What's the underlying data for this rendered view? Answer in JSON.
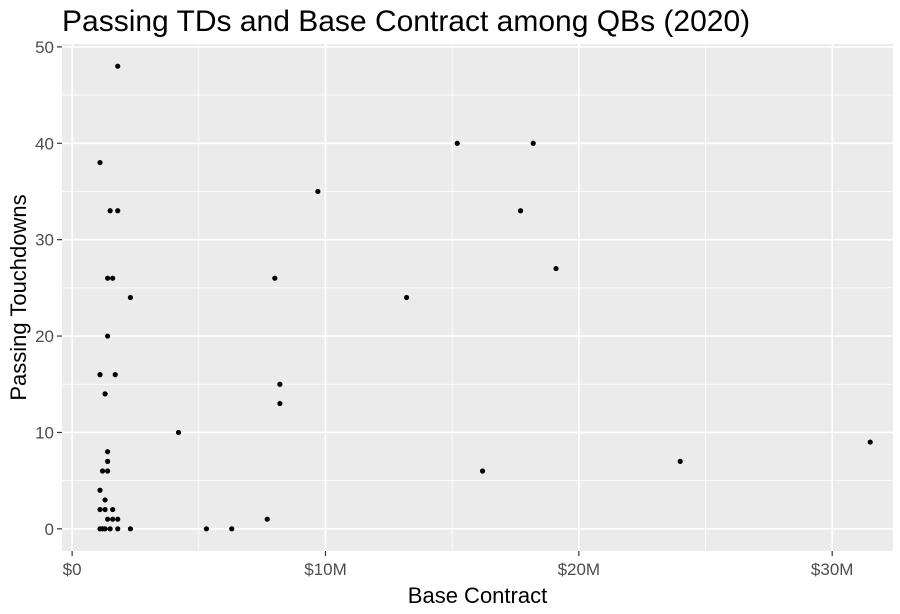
{
  "chart_data": {
    "type": "scatter",
    "title": "Passing TDs and Base Contract among QBs (2020)",
    "xlabel": "Base Contract",
    "ylabel": "Passing Touchdowns",
    "xlim": [
      -0.4,
      32.4
    ],
    "ylim": [
      -2.3,
      50.3
    ],
    "x_unit": "millions of dollars",
    "x_ticks": [
      0,
      10,
      20,
      30
    ],
    "x_tick_labels": [
      "$0",
      "$10M",
      "$20M",
      "$30M"
    ],
    "x_minor_ticks": [
      5,
      15,
      25
    ],
    "y_ticks": [
      0,
      10,
      20,
      30,
      40,
      50
    ],
    "y_tick_labels": [
      "0",
      "10",
      "20",
      "30",
      "40",
      "50"
    ],
    "y_minor_ticks": [
      5,
      15,
      25,
      35,
      45
    ],
    "grid": true,
    "colors": {
      "panel_background": "#ebebeb",
      "grid_line": "#ffffff",
      "point": "#000000",
      "tick_label": "#4d4d4d"
    },
    "points": [
      {
        "x": 1.8,
        "y": 48
      },
      {
        "x": 1.1,
        "y": 38
      },
      {
        "x": 1.5,
        "y": 33
      },
      {
        "x": 1.8,
        "y": 33
      },
      {
        "x": 1.4,
        "y": 26
      },
      {
        "x": 1.6,
        "y": 26
      },
      {
        "x": 2.3,
        "y": 24
      },
      {
        "x": 1.4,
        "y": 20
      },
      {
        "x": 1.1,
        "y": 16
      },
      {
        "x": 1.7,
        "y": 16
      },
      {
        "x": 1.3,
        "y": 14
      },
      {
        "x": 1.4,
        "y": 8
      },
      {
        "x": 1.4,
        "y": 7
      },
      {
        "x": 1.2,
        "y": 6
      },
      {
        "x": 1.4,
        "y": 6
      },
      {
        "x": 1.1,
        "y": 4
      },
      {
        "x": 1.3,
        "y": 3
      },
      {
        "x": 1.1,
        "y": 2
      },
      {
        "x": 1.3,
        "y": 2
      },
      {
        "x": 1.6,
        "y": 2
      },
      {
        "x": 1.4,
        "y": 1
      },
      {
        "x": 1.6,
        "y": 1
      },
      {
        "x": 1.8,
        "y": 1
      },
      {
        "x": 1.1,
        "y": 0
      },
      {
        "x": 1.2,
        "y": 0
      },
      {
        "x": 1.3,
        "y": 0
      },
      {
        "x": 1.5,
        "y": 0
      },
      {
        "x": 1.8,
        "y": 0
      },
      {
        "x": 2.3,
        "y": 0
      },
      {
        "x": 4.2,
        "y": 10
      },
      {
        "x": 5.3,
        "y": 0
      },
      {
        "x": 6.3,
        "y": 0
      },
      {
        "x": 7.7,
        "y": 1
      },
      {
        "x": 8.0,
        "y": 26
      },
      {
        "x": 8.2,
        "y": 15
      },
      {
        "x": 8.2,
        "y": 13
      },
      {
        "x": 9.7,
        "y": 35
      },
      {
        "x": 13.2,
        "y": 24
      },
      {
        "x": 15.2,
        "y": 40
      },
      {
        "x": 16.2,
        "y": 6
      },
      {
        "x": 17.7,
        "y": 33
      },
      {
        "x": 18.2,
        "y": 40
      },
      {
        "x": 19.1,
        "y": 27
      },
      {
        "x": 24.0,
        "y": 7
      },
      {
        "x": 31.5,
        "y": 9
      }
    ]
  }
}
